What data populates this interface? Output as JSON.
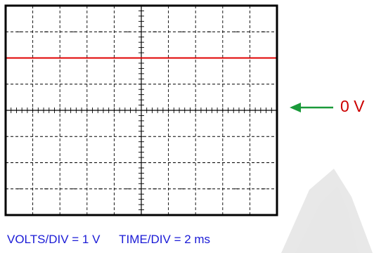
{
  "scope": {
    "divisions_x": 10,
    "divisions_y": 8,
    "minor_ticks_per_division": 5,
    "grid_style": "dashed",
    "border_color": "#000000",
    "grid_color": "#000000"
  },
  "trace": {
    "level_divisions_above_center": 2,
    "color": "#e00000"
  },
  "reference": {
    "label": "0 V",
    "label_color": "#cc0000",
    "arrow_color": "#1a9a3a",
    "arrow_direction": "left"
  },
  "settings": {
    "volts_div": "VOLTS/DIV  = 1 V",
    "time_div": "TIME/DIV  =  2 ms",
    "text_color": "#1a1ad6"
  },
  "background": {
    "watermark_color": "#c8c8c8"
  }
}
